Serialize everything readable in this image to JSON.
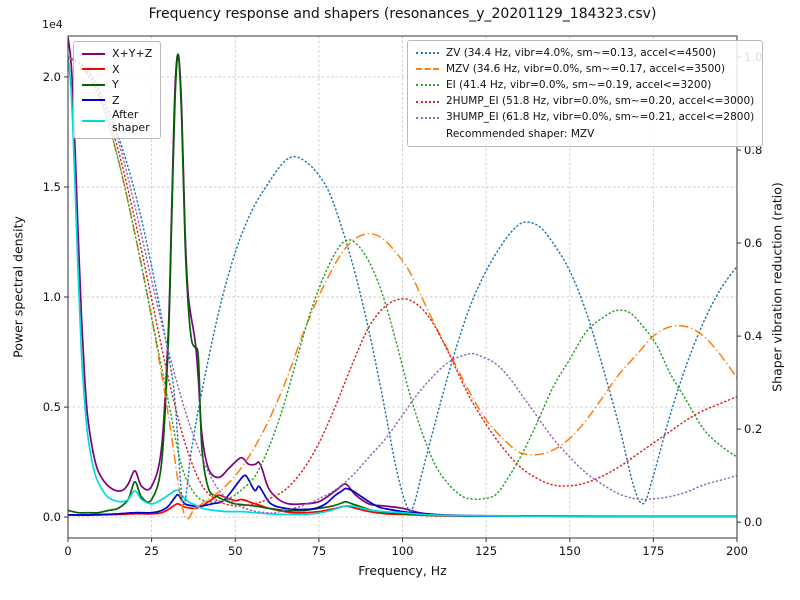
{
  "chart_data": {
    "type": "line",
    "title": "Frequency response and shapers (resonances_y_20201129_184323.csv)",
    "xlabel": "Frequency, Hz",
    "ylabel_left": "Power spectral density",
    "ylabel_right": "Shaper vibration reduction (ratio)",
    "y_offset_label": "1e4",
    "grid": true,
    "xlim": [
      0,
      200
    ],
    "ylim_left": [
      -0.095,
      2.186
    ],
    "ylim_right": [
      -0.034,
      1.045
    ],
    "xticks": [
      0,
      25,
      50,
      75,
      100,
      125,
      150,
      175,
      200
    ],
    "xtick_labels": [
      "0",
      "25",
      "50",
      "75",
      "100",
      "125",
      "150",
      "175",
      "200"
    ],
    "yticks_left": [
      0.0,
      0.5,
      1.0,
      1.5,
      2.0
    ],
    "ytick_left_labels": [
      "0.0",
      "0.5",
      "1.0",
      "1.5",
      "2.0"
    ],
    "yticks_right": [
      0.0,
      0.2,
      0.4,
      0.6,
      0.8,
      1.0
    ],
    "ytick_right_labels": [
      "0.0",
      "0.2",
      "0.4",
      "0.6",
      "0.8",
      "1.0"
    ],
    "legend_left_loc": "upper left",
    "legend_right_loc": "upper right",
    "recommendation": "Recommended shaper: MZV",
    "series": [
      {
        "id": "xyz",
        "label": "X+Y+Z",
        "axis": "left",
        "color": "#800080",
        "style": "solid",
        "x": [
          0,
          1,
          2,
          3,
          4,
          5,
          6,
          8,
          10,
          13,
          16,
          18,
          20,
          22,
          25,
          28,
          30,
          31,
          32,
          33,
          34,
          35,
          36,
          38,
          39,
          40,
          42,
          45,
          48,
          50,
          52,
          54,
          56,
          57,
          58,
          60,
          63,
          66,
          70,
          75,
          80,
          83,
          86,
          90,
          95,
          100,
          105,
          110,
          120,
          140,
          170,
          200
        ],
        "y": [
          2.18,
          2.05,
          1.72,
          1.3,
          0.92,
          0.63,
          0.44,
          0.26,
          0.18,
          0.13,
          0.12,
          0.15,
          0.21,
          0.14,
          0.14,
          0.32,
          0.85,
          1.4,
          1.95,
          2.1,
          1.85,
          1.3,
          1.0,
          0.8,
          0.62,
          0.38,
          0.22,
          0.18,
          0.22,
          0.25,
          0.27,
          0.24,
          0.24,
          0.25,
          0.22,
          0.13,
          0.08,
          0.06,
          0.06,
          0.07,
          0.12,
          0.15,
          0.1,
          0.06,
          0.05,
          0.04,
          0.02,
          0.012,
          0.007,
          0.005,
          0.004,
          0.004
        ]
      },
      {
        "id": "x",
        "label": "X",
        "axis": "left",
        "color": "#ff0000",
        "style": "solid",
        "x": [
          0,
          5,
          10,
          15,
          20,
          25,
          28,
          30,
          32,
          33,
          35,
          38,
          40,
          42,
          44,
          45,
          47,
          50,
          52,
          55,
          58,
          60,
          63,
          67,
          70,
          75,
          80,
          83,
          86,
          90,
          95,
          100,
          110,
          120,
          140,
          170,
          200
        ],
        "y": [
          0.01,
          0.008,
          0.01,
          0.012,
          0.015,
          0.015,
          0.02,
          0.035,
          0.055,
          0.06,
          0.045,
          0.04,
          0.05,
          0.07,
          0.09,
          0.1,
          0.09,
          0.075,
          0.08,
          0.065,
          0.05,
          0.04,
          0.03,
          0.02,
          0.02,
          0.025,
          0.04,
          0.05,
          0.04,
          0.025,
          0.015,
          0.012,
          0.006,
          0.005,
          0.004,
          0.003,
          0.003
        ]
      },
      {
        "id": "y",
        "label": "Y",
        "axis": "left",
        "color": "#006400",
        "style": "solid",
        "x": [
          0,
          3,
          6,
          9,
          12,
          15,
          18,
          20,
          22,
          25,
          28,
          30,
          31,
          32,
          33,
          34,
          35,
          36,
          37,
          38,
          39,
          40,
          42,
          45,
          48,
          50,
          53,
          56,
          60,
          65,
          70,
          75,
          79,
          82,
          83,
          85,
          88,
          91,
          95,
          100,
          105,
          110,
          120,
          140,
          170,
          200
        ],
        "y": [
          0.03,
          0.02,
          0.02,
          0.02,
          0.03,
          0.04,
          0.08,
          0.16,
          0.09,
          0.08,
          0.25,
          0.8,
          1.35,
          1.9,
          2.1,
          1.8,
          1.25,
          0.95,
          0.8,
          0.77,
          0.72,
          0.32,
          0.13,
          0.09,
          0.07,
          0.06,
          0.055,
          0.05,
          0.04,
          0.03,
          0.03,
          0.04,
          0.05,
          0.065,
          0.07,
          0.06,
          0.045,
          0.03,
          0.02,
          0.015,
          0.01,
          0.007,
          0.005,
          0.004,
          0.003,
          0.003
        ]
      },
      {
        "id": "z",
        "label": "Z",
        "axis": "left",
        "color": "#0000cd",
        "style": "solid",
        "x": [
          0,
          5,
          10,
          15,
          20,
          25,
          28,
          30,
          32,
          33,
          35,
          38,
          40,
          43,
          46,
          48,
          50,
          51,
          52,
          53,
          54,
          55,
          56,
          57,
          58,
          60,
          62,
          65,
          68,
          71,
          74,
          77,
          80,
          82,
          83,
          85,
          87,
          90,
          93,
          96,
          100,
          104,
          108,
          112,
          120,
          140,
          170,
          200
        ],
        "y": [
          0.01,
          0.01,
          0.012,
          0.015,
          0.02,
          0.02,
          0.03,
          0.05,
          0.09,
          0.1,
          0.06,
          0.05,
          0.05,
          0.06,
          0.07,
          0.1,
          0.14,
          0.16,
          0.18,
          0.19,
          0.17,
          0.14,
          0.12,
          0.14,
          0.12,
          0.07,
          0.05,
          0.04,
          0.035,
          0.035,
          0.04,
          0.06,
          0.1,
          0.12,
          0.13,
          0.12,
          0.1,
          0.07,
          0.045,
          0.035,
          0.025,
          0.018,
          0.012,
          0.008,
          0.005,
          0.004,
          0.003,
          0.003
        ]
      },
      {
        "id": "after_shaper",
        "label": "After\nshaper",
        "axis": "left",
        "color": "#00dcdc",
        "style": "solid",
        "x": [
          0,
          1,
          2,
          3,
          4,
          5,
          6,
          8,
          10,
          12,
          14,
          16,
          18,
          20,
          22,
          25,
          28,
          30,
          32,
          33,
          34,
          36,
          38,
          40,
          44,
          48,
          52,
          56,
          60,
          65,
          70,
          75,
          78,
          81,
          83,
          85,
          88,
          91,
          95,
          100,
          105,
          110,
          120,
          140,
          170,
          200
        ],
        "y": [
          2.1,
          1.92,
          1.55,
          1.12,
          0.75,
          0.52,
          0.36,
          0.2,
          0.13,
          0.09,
          0.075,
          0.07,
          0.08,
          0.12,
          0.08,
          0.06,
          0.08,
          0.1,
          0.12,
          0.12,
          0.1,
          0.07,
          0.055,
          0.04,
          0.03,
          0.025,
          0.025,
          0.02,
          0.015,
          0.012,
          0.012,
          0.018,
          0.028,
          0.042,
          0.05,
          0.05,
          0.04,
          0.03,
          0.024,
          0.02,
          0.013,
          0.009,
          0.006,
          0.004,
          0.003,
          0.003
        ]
      },
      {
        "id": "zv",
        "label": "ZV (34.4 Hz, vibr=4.0%, sm~=0.13, accel<=4500)",
        "axis": "right",
        "color": "#1f77b4",
        "style": "dotted",
        "x": [
          0,
          5,
          10,
          15,
          20,
          25,
          30,
          32,
          34.4,
          37,
          40,
          45,
          50,
          55,
          60,
          64,
          67,
          70,
          74,
          78,
          82,
          86,
          90,
          94,
          98,
          101,
          103,
          106,
          110,
          115,
          120,
          125,
          130,
          134,
          137,
          141,
          145,
          150,
          155,
          160,
          165,
          169,
          172,
          175,
          180,
          185,
          190,
          195,
          200
        ],
        "y": [
          1.0,
          0.975,
          0.92,
          0.83,
          0.71,
          0.55,
          0.36,
          0.26,
          0.04,
          0.16,
          0.28,
          0.45,
          0.58,
          0.67,
          0.73,
          0.77,
          0.785,
          0.78,
          0.755,
          0.71,
          0.63,
          0.53,
          0.41,
          0.27,
          0.12,
          0.04,
          0.03,
          0.11,
          0.22,
          0.35,
          0.46,
          0.54,
          0.6,
          0.635,
          0.645,
          0.635,
          0.6,
          0.54,
          0.45,
          0.33,
          0.2,
          0.08,
          0.04,
          0.1,
          0.23,
          0.34,
          0.43,
          0.5,
          0.55
        ]
      },
      {
        "id": "mzv",
        "label": "MZV (34.6 Hz, vibr=0.0%, sm~=0.17, accel<=3500)",
        "axis": "right",
        "color": "#ff7f0e",
        "style": "dashdot",
        "x": [
          0,
          5,
          10,
          15,
          20,
          25,
          30,
          34.6,
          38,
          42,
          46,
          50,
          54,
          58,
          62,
          66,
          70,
          74,
          78,
          82,
          86,
          90,
          94,
          98,
          102,
          106,
          110,
          115,
          120,
          125,
          130,
          135,
          140,
          145,
          150,
          155,
          160,
          165,
          170,
          175,
          180,
          185,
          190,
          195,
          200
        ],
        "y": [
          1.0,
          0.97,
          0.9,
          0.78,
          0.62,
          0.44,
          0.23,
          0.02,
          0.03,
          0.05,
          0.07,
          0.1,
          0.14,
          0.19,
          0.25,
          0.32,
          0.4,
          0.47,
          0.53,
          0.58,
          0.61,
          0.62,
          0.61,
          0.58,
          0.54,
          0.48,
          0.42,
          0.35,
          0.28,
          0.22,
          0.18,
          0.15,
          0.145,
          0.155,
          0.18,
          0.22,
          0.27,
          0.32,
          0.36,
          0.4,
          0.42,
          0.42,
          0.4,
          0.36,
          0.31
        ]
      },
      {
        "id": "ei",
        "label": "EI (41.4 Hz, vibr=0.0%, sm~=0.19, accel<=3200)",
        "axis": "right",
        "color": "#2ca02c",
        "style": "dotted",
        "x": [
          0,
          5,
          10,
          15,
          20,
          25,
          30,
          34,
          38,
          41.4,
          45,
          48,
          52,
          56,
          60,
          64,
          68,
          72,
          76,
          80,
          83,
          86,
          90,
          94,
          98,
          102,
          106,
          110,
          114,
          118,
          121,
          124,
          128,
          132,
          136,
          140,
          145,
          150,
          155,
          160,
          164,
          168,
          172,
          176,
          180,
          185,
          190,
          195,
          200
        ],
        "y": [
          1.0,
          0.97,
          0.9,
          0.78,
          0.62,
          0.44,
          0.26,
          0.12,
          0.06,
          0.045,
          0.045,
          0.05,
          0.07,
          0.1,
          0.16,
          0.24,
          0.34,
          0.44,
          0.52,
          0.58,
          0.605,
          0.6,
          0.56,
          0.49,
          0.39,
          0.28,
          0.19,
          0.12,
          0.08,
          0.055,
          0.05,
          0.05,
          0.06,
          0.1,
          0.15,
          0.21,
          0.29,
          0.35,
          0.41,
          0.44,
          0.455,
          0.45,
          0.42,
          0.38,
          0.32,
          0.26,
          0.2,
          0.165,
          0.14
        ]
      },
      {
        "id": "2hump_ei",
        "label": "2HUMP_EI (51.8 Hz, vibr=0.0%, sm~=0.20, accel<=3000)",
        "axis": "right",
        "color": "#d62728",
        "style": "dotted",
        "x": [
          0,
          5,
          10,
          15,
          20,
          25,
          30,
          35,
          40,
          45,
          50,
          51.8,
          56,
          60,
          65,
          70,
          75,
          80,
          85,
          90,
          95,
          100,
          104,
          108,
          112,
          116,
          120,
          125,
          130,
          135,
          140,
          145,
          150,
          155,
          160,
          165,
          170,
          175,
          180,
          185,
          190,
          195,
          200
        ],
        "y": [
          1.0,
          0.975,
          0.91,
          0.8,
          0.65,
          0.48,
          0.31,
          0.17,
          0.08,
          0.045,
          0.035,
          0.035,
          0.04,
          0.05,
          0.07,
          0.11,
          0.17,
          0.25,
          0.34,
          0.42,
          0.465,
          0.48,
          0.47,
          0.44,
          0.39,
          0.33,
          0.27,
          0.21,
          0.16,
          0.12,
          0.095,
          0.08,
          0.078,
          0.085,
          0.1,
          0.12,
          0.145,
          0.17,
          0.195,
          0.22,
          0.24,
          0.255,
          0.27
        ]
      },
      {
        "id": "3hump_ei",
        "label": "3HUMP_EI (61.8 Hz, vibr=0.0%, sm~=0.21, accel<=2800)",
        "axis": "right",
        "color": "#9467bd",
        "style": "dotted",
        "x": [
          0,
          5,
          10,
          15,
          20,
          25,
          30,
          35,
          40,
          45,
          50,
          55,
          60,
          61.8,
          66,
          70,
          75,
          80,
          85,
          90,
          95,
          100,
          105,
          110,
          114,
          118,
          121,
          124,
          128,
          132,
          136,
          140,
          145,
          150,
          155,
          160,
          165,
          170,
          175,
          180,
          185,
          190,
          195,
          200
        ],
        "y": [
          1.0,
          0.98,
          0.92,
          0.82,
          0.68,
          0.52,
          0.37,
          0.24,
          0.14,
          0.07,
          0.04,
          0.025,
          0.02,
          0.02,
          0.028,
          0.035,
          0.05,
          0.07,
          0.1,
          0.14,
          0.18,
          0.23,
          0.28,
          0.32,
          0.345,
          0.358,
          0.362,
          0.355,
          0.34,
          0.31,
          0.27,
          0.23,
          0.18,
          0.14,
          0.105,
          0.08,
          0.06,
          0.05,
          0.05,
          0.055,
          0.065,
          0.08,
          0.09,
          0.1
        ]
      }
    ]
  }
}
